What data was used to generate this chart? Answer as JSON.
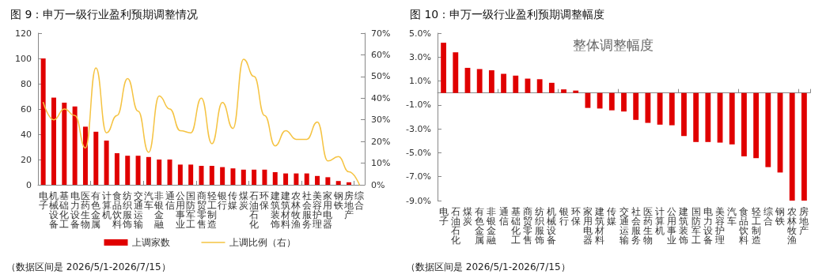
{
  "chart_data": [
    {
      "type": "bar",
      "title": "图 9：申万一级行业盈利预期调整情况",
      "categories": [
        "电子",
        "机械设备",
        "基础化工",
        "电力设备",
        "医药生物",
        "有色金属",
        "计算机",
        "食品饮料",
        "纺织服饰",
        "交通运输",
        "汽车",
        "非银金融",
        "通信",
        "公用事业",
        "国防军工",
        "商贸零售",
        "轻工制造",
        "银行",
        "传媒",
        "煤炭",
        "石油石化",
        "环保",
        "建筑装饰",
        "建筑材料",
        "农林牧渔",
        "社会服务",
        "美容护理",
        "家用电器",
        "钢铁",
        "房地产",
        "综合"
      ],
      "series": [
        {
          "name": "上调家数",
          "color": "#e00000",
          "values": [
            100,
            69,
            65,
            62,
            46,
            42,
            35,
            25,
            23,
            23,
            22,
            20,
            20,
            16,
            16,
            15,
            15,
            14,
            13,
            12,
            12,
            12,
            10,
            9,
            9,
            9,
            7,
            6,
            3,
            2,
            0
          ]
        },
        {
          "name": "上调比例（右）",
          "type": "line",
          "axis": "y2",
          "color": "#f5c342",
          "values": [
            38,
            30,
            35,
            32,
            17,
            54,
            24,
            32,
            49,
            34,
            15,
            41,
            35,
            25,
            24,
            40,
            19,
            38,
            26,
            58,
            50,
            32,
            18,
            25,
            21,
            21,
            29,
            11,
            13,
            6,
            0
          ]
        }
      ],
      "ylim": [
        0,
        120
      ],
      "yticks": [
        0,
        20,
        40,
        60,
        80,
        100,
        120
      ],
      "y2lim": [
        0,
        70
      ],
      "y2ticks": [
        {
          "value": 0,
          "label": "0%"
        },
        {
          "value": 10,
          "label": "10%"
        },
        {
          "value": 20,
          "label": "20%"
        },
        {
          "value": 30,
          "label": "30%"
        },
        {
          "value": 40,
          "label": "40%"
        },
        {
          "value": 50,
          "label": "50%"
        },
        {
          "value": 60,
          "label": "60%"
        },
        {
          "value": 70,
          "label": "70%"
        }
      ],
      "grid": false,
      "legend": "bottom",
      "marker": "none",
      "annotations": [
        "（数据区间是 2026/5/1-2026/7/15）"
      ]
    },
    {
      "type": "bar",
      "title": "图 10：申万一级行业盈利预期调整幅度",
      "subtitle": "整体调整幅度",
      "categories": [
        "电子",
        "石油石化",
        "煤炭",
        "有色金属",
        "非银金融",
        "通信",
        "基础化工",
        "商贸零售",
        "纺织服饰",
        "机械设备",
        "银行",
        "环保",
        "家用电器",
        "建筑材料",
        "传媒",
        "交通运输",
        "社会服务",
        "医药生物",
        "计算机",
        "公用事业",
        "建筑装饰",
        "国防军工",
        "电力设备",
        "美容护理",
        "汽车",
        "食品饮料",
        "轻工制造",
        "综合",
        "钢铁",
        "农林牧渔",
        "房地产"
      ],
      "values": [
        4.2,
        3.4,
        2.1,
        2.0,
        1.9,
        1.6,
        1.45,
        1.2,
        1.15,
        0.85,
        0.3,
        0.2,
        -1.25,
        -1.3,
        -1.45,
        -1.55,
        -2.25,
        -2.5,
        -2.65,
        -2.7,
        -3.6,
        -4.1,
        -4.1,
        -4.15,
        -4.3,
        -5.3,
        -5.45,
        -6.2,
        -6.65,
        -9.0,
        -9.0
      ],
      "color": "#e00000",
      "ylim": [
        -9,
        5
      ],
      "yticks": [
        {
          "value": -9,
          "label": "-9.0%"
        },
        {
          "value": -7,
          "label": "-7.0%"
        },
        {
          "value": -5,
          "label": "-5.0%"
        },
        {
          "value": -3,
          "label": "-3.0%"
        },
        {
          "value": -1,
          "label": "-1.0%"
        },
        {
          "value": 1,
          "label": "1.0%"
        },
        {
          "value": 3,
          "label": "3.0%"
        },
        {
          "value": 5,
          "label": "5.0%"
        }
      ],
      "grid": false,
      "legend": false,
      "annotations": [
        "（数据区间是 2026/5/1-2026/7/15）"
      ]
    }
  ]
}
